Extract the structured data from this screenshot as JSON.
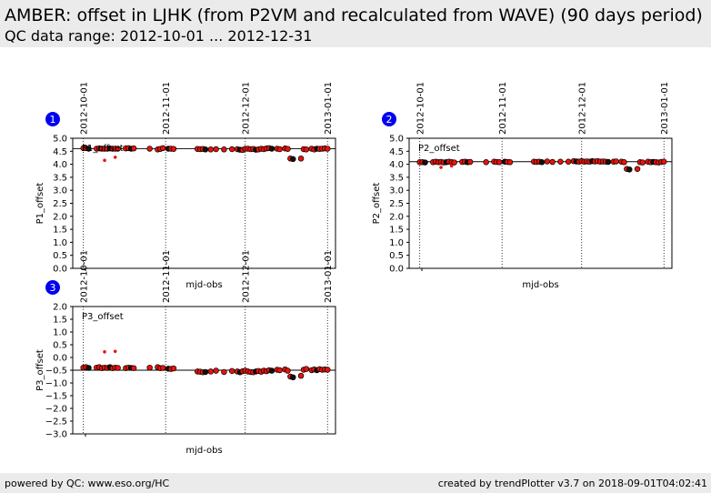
{
  "header": {
    "title": "AMBER: offset in LJHK (from P2VM and recalculated from WAVE) (90 days period)",
    "subtitle": "QC data range: 2012-10-01 ... 2012-12-31"
  },
  "footer": {
    "left": "powered by QC: www.eso.org/HC",
    "right": "created by trendPlotter v3.7 on 2018-09-01T04:02:41"
  },
  "colors": {
    "marker_fill": "#e8140c",
    "marker_edge": "#000000",
    "marker_black": "#111111",
    "badge": "#0000ee"
  },
  "chart_data": [
    {
      "type": "scatter",
      "number": "1",
      "label": "P1_offset",
      "xlabel": "mjd-obs",
      "ylabel": "P1_offset",
      "ylim": [
        0.0,
        5.0
      ],
      "yticks": [
        "0.0",
        "0.5",
        "1.0",
        "1.5",
        "2.0",
        "2.5",
        "3.0",
        "3.5",
        "4.0",
        "4.5",
        "5.0"
      ],
      "xticks": [
        "2012-10-01",
        "2012-11-01",
        "2012-12-01",
        "2013-01-01"
      ],
      "reference_line": 4.6,
      "x": [
        "2012-10-01",
        "2012-10-02",
        "2012-10-03",
        "2012-10-06",
        "2012-10-07",
        "2012-10-08",
        "2012-10-09",
        "2012-10-10",
        "2012-10-11",
        "2012-10-12",
        "2012-10-13",
        "2012-10-14",
        "2012-10-17",
        "2012-10-18",
        "2012-10-19",
        "2012-10-20",
        "2012-10-26",
        "2012-10-29",
        "2012-10-30",
        "2012-10-31",
        "2012-11-02",
        "2012-11-03",
        "2012-11-04",
        "2012-11-13",
        "2012-11-14",
        "2012-11-15",
        "2012-11-16",
        "2012-11-18",
        "2012-11-20",
        "2012-11-23",
        "2012-11-26",
        "2012-11-28",
        "2012-11-29",
        "2012-11-30",
        "2012-12-01",
        "2012-12-02",
        "2012-12-03",
        "2012-12-04",
        "2012-12-05",
        "2012-12-06",
        "2012-12-07",
        "2012-12-08",
        "2012-12-09",
        "2012-12-10",
        "2012-12-11",
        "2012-12-13",
        "2012-12-14",
        "2012-12-16",
        "2012-12-17",
        "2012-12-18",
        "2012-12-19",
        "2012-12-22",
        "2012-12-23",
        "2012-12-24",
        "2012-12-26",
        "2012-12-27",
        "2012-12-28",
        "2012-12-29",
        "2012-12-30",
        "2012-12-31",
        "2013-01-01",
        "2012-10-09",
        "2012-10-13"
      ],
      "y": [
        4.62,
        4.62,
        4.6,
        4.6,
        4.61,
        4.6,
        4.6,
        4.6,
        4.61,
        4.6,
        4.6,
        4.6,
        4.61,
        4.62,
        4.6,
        4.61,
        4.6,
        4.57,
        4.59,
        4.62,
        4.6,
        4.6,
        4.59,
        4.59,
        4.58,
        4.59,
        4.57,
        4.57,
        4.58,
        4.57,
        4.58,
        4.58,
        4.56,
        4.55,
        4.6,
        4.6,
        4.58,
        4.59,
        4.56,
        4.57,
        4.6,
        4.58,
        4.61,
        4.62,
        4.6,
        4.6,
        4.58,
        4.61,
        4.59,
        4.22,
        4.2,
        4.22,
        4.58,
        4.57,
        4.6,
        4.57,
        4.6,
        4.59,
        4.6,
        4.61,
        4.6,
        4.15,
        4.27
      ]
    },
    {
      "type": "scatter",
      "number": "2",
      "label": "P2_offset",
      "xlabel": "mjd-obs",
      "ylabel": "P2_offset",
      "ylim": [
        0.0,
        5.0
      ],
      "yticks": [
        "0.0",
        "0.5",
        "1.0",
        "1.5",
        "2.0",
        "2.5",
        "3.0",
        "3.5",
        "4.0",
        "4.5",
        "5.0"
      ],
      "xticks": [
        "2012-10-01",
        "2012-11-01",
        "2012-12-01",
        "2013-01-01"
      ],
      "reference_line": 4.1,
      "x": [
        "2012-10-01",
        "2012-10-02",
        "2012-10-03",
        "2012-10-06",
        "2012-10-07",
        "2012-10-08",
        "2012-10-09",
        "2012-10-10",
        "2012-10-11",
        "2012-10-12",
        "2012-10-13",
        "2012-10-14",
        "2012-10-17",
        "2012-10-18",
        "2012-10-19",
        "2012-10-20",
        "2012-10-26",
        "2012-10-29",
        "2012-10-30",
        "2012-10-31",
        "2012-11-02",
        "2012-11-03",
        "2012-11-04",
        "2012-11-13",
        "2012-11-14",
        "2012-11-15",
        "2012-11-16",
        "2012-11-18",
        "2012-11-20",
        "2012-11-23",
        "2012-11-26",
        "2012-11-28",
        "2012-11-29",
        "2012-11-30",
        "2012-12-01",
        "2012-12-02",
        "2012-12-03",
        "2012-12-04",
        "2012-12-05",
        "2012-12-06",
        "2012-12-07",
        "2012-12-08",
        "2012-12-09",
        "2012-12-10",
        "2012-12-11",
        "2012-12-13",
        "2012-12-14",
        "2012-12-16",
        "2012-12-17",
        "2012-12-18",
        "2012-12-19",
        "2012-12-22",
        "2012-12-23",
        "2012-12-24",
        "2012-12-26",
        "2012-12-27",
        "2012-12-28",
        "2012-12-29",
        "2012-12-30",
        "2012-12-31",
        "2013-01-01",
        "2012-10-09",
        "2012-10-13"
      ],
      "y": [
        4.08,
        4.08,
        4.07,
        4.08,
        4.1,
        4.08,
        4.09,
        4.07,
        4.08,
        4.1,
        4.08,
        4.07,
        4.09,
        4.1,
        4.08,
        4.09,
        4.08,
        4.1,
        4.09,
        4.08,
        4.1,
        4.09,
        4.08,
        4.1,
        4.09,
        4.1,
        4.08,
        4.11,
        4.09,
        4.1,
        4.1,
        4.12,
        4.11,
        4.1,
        4.12,
        4.1,
        4.11,
        4.1,
        4.12,
        4.11,
        4.12,
        4.1,
        4.11,
        4.1,
        4.09,
        4.1,
        4.11,
        4.1,
        4.08,
        3.82,
        3.8,
        3.82,
        4.08,
        4.07,
        4.1,
        4.08,
        4.09,
        4.08,
        4.07,
        4.09,
        4.1,
        3.88,
        3.94
      ]
    },
    {
      "type": "scatter",
      "number": "3",
      "label": "P3_offset",
      "xlabel": "mjd-obs",
      "ylabel": "P3_offset",
      "ylim": [
        -3.0,
        2.0
      ],
      "yticks": [
        "−3.0",
        "−2.5",
        "−2.0",
        "−1.5",
        "−1.0",
        "−0.5",
        "0.0",
        "0.5",
        "1.0",
        "1.5",
        "2.0"
      ],
      "xticks": [
        "2012-10-01",
        "2012-11-01",
        "2012-12-01",
        "2013-01-01"
      ],
      "reference_line": -0.5,
      "x": [
        "2012-10-01",
        "2012-10-02",
        "2012-10-03",
        "2012-10-06",
        "2012-10-07",
        "2012-10-08",
        "2012-10-09",
        "2012-10-10",
        "2012-10-11",
        "2012-10-12",
        "2012-10-13",
        "2012-10-14",
        "2012-10-17",
        "2012-10-18",
        "2012-10-19",
        "2012-10-20",
        "2012-10-26",
        "2012-10-29",
        "2012-10-30",
        "2012-10-31",
        "2012-11-02",
        "2012-11-03",
        "2012-11-04",
        "2012-11-13",
        "2012-11-14",
        "2012-11-15",
        "2012-11-16",
        "2012-11-18",
        "2012-11-20",
        "2012-11-23",
        "2012-11-26",
        "2012-11-28",
        "2012-11-29",
        "2012-11-30",
        "2012-12-01",
        "2012-12-02",
        "2012-12-03",
        "2012-12-04",
        "2012-12-05",
        "2012-12-06",
        "2012-12-07",
        "2012-12-08",
        "2012-12-09",
        "2012-12-10",
        "2012-12-11",
        "2012-12-13",
        "2012-12-14",
        "2012-12-16",
        "2012-12-17",
        "2012-12-18",
        "2012-12-19",
        "2012-12-22",
        "2012-12-23",
        "2012-12-24",
        "2012-12-26",
        "2012-12-27",
        "2012-12-28",
        "2012-12-29",
        "2012-12-30",
        "2012-12-31",
        "2013-01-01",
        "2012-10-09",
        "2012-10-13"
      ],
      "y": [
        -0.4,
        -0.38,
        -0.41,
        -0.4,
        -0.38,
        -0.42,
        -0.4,
        -0.41,
        -0.38,
        -0.42,
        -0.4,
        -0.41,
        -0.42,
        -0.4,
        -0.41,
        -0.42,
        -0.4,
        -0.38,
        -0.42,
        -0.41,
        -0.44,
        -0.45,
        -0.43,
        -0.55,
        -0.56,
        -0.58,
        -0.57,
        -0.55,
        -0.52,
        -0.57,
        -0.53,
        -0.55,
        -0.58,
        -0.54,
        -0.52,
        -0.55,
        -0.57,
        -0.58,
        -0.55,
        -0.53,
        -0.56,
        -0.52,
        -0.54,
        -0.5,
        -0.52,
        -0.48,
        -0.5,
        -0.47,
        -0.52,
        -0.75,
        -0.78,
        -0.72,
        -0.48,
        -0.45,
        -0.5,
        -0.47,
        -0.5,
        -0.46,
        -0.48,
        -0.47,
        -0.48,
        0.22,
        0.24
      ]
    }
  ]
}
